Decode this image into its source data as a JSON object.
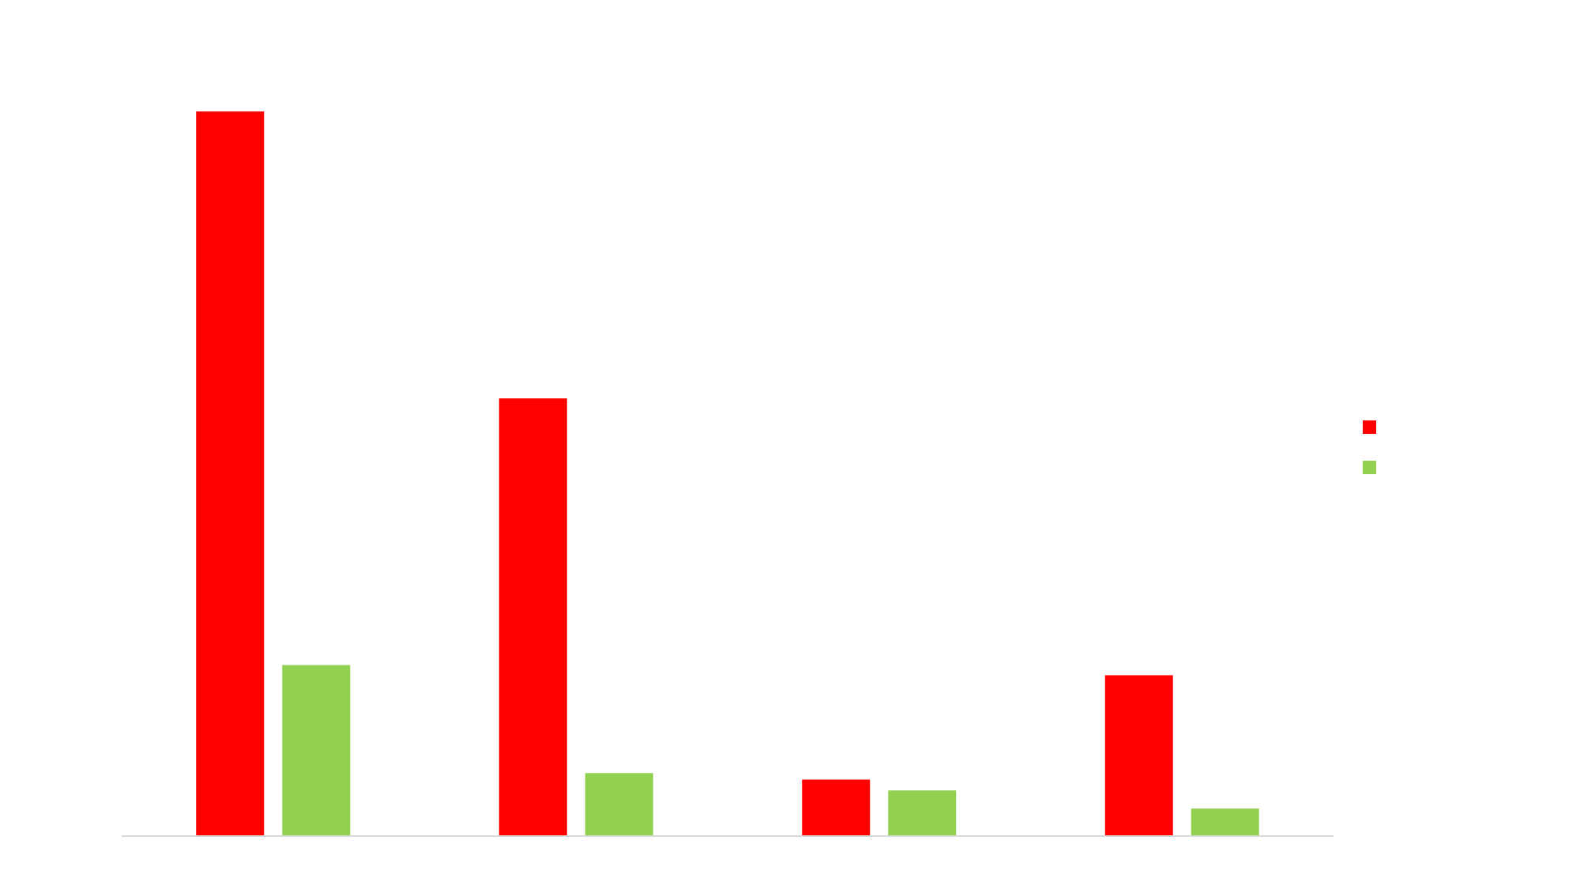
{
  "chart_data": {
    "type": "bar",
    "title": "",
    "xlabel": "",
    "ylabel": "",
    "categories": [
      "",
      "",
      "",
      ""
    ],
    "series": [
      {
        "name": "",
        "color": "#ff0000",
        "values": [
          100,
          60.4,
          7.8,
          22.2
        ]
      },
      {
        "name": "",
        "color": "#92d050",
        "values": [
          23.6,
          8.7,
          6.3,
          3.8
        ]
      }
    ],
    "ylim": [
      0,
      100
    ],
    "grid": false,
    "legend_position": "right"
  }
}
